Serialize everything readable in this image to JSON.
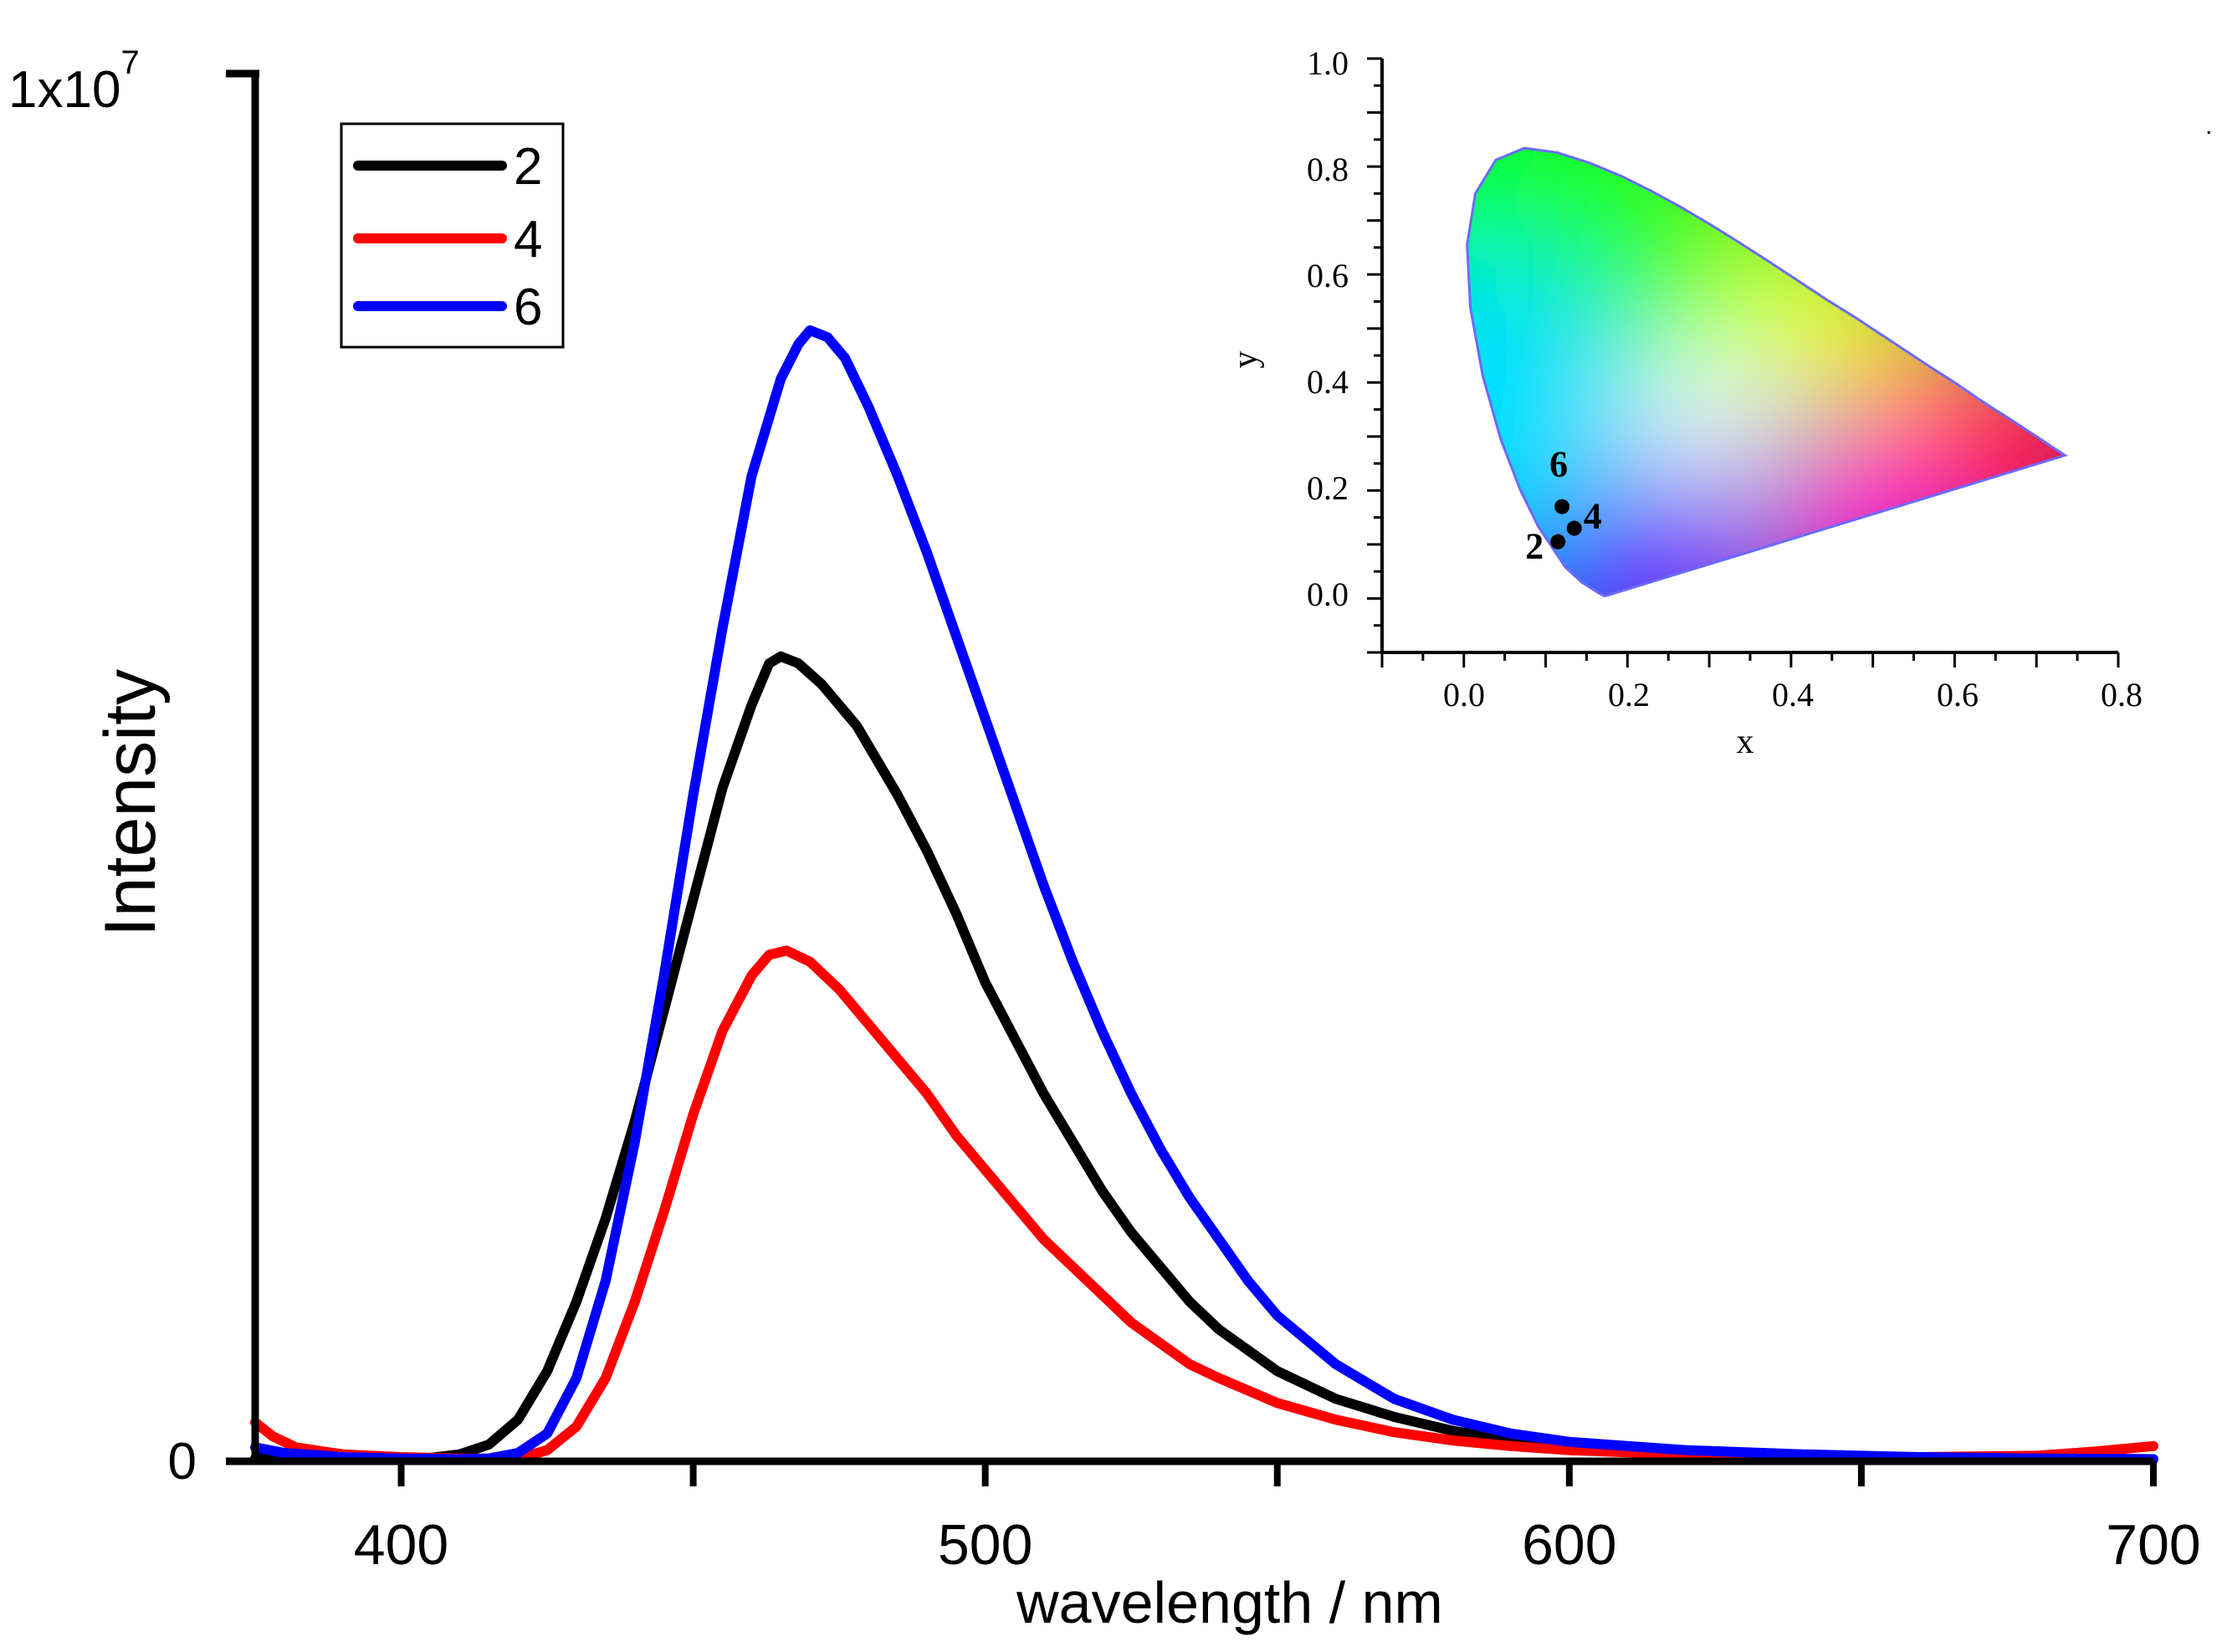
{
  "chart_data": [
    {
      "type": "line",
      "title": "",
      "xlabel": "wavelength / nm",
      "ylabel": "Intensity",
      "xlim": [
        375,
        700
      ],
      "ylim": [
        0,
        10000000
      ],
      "xticks": [
        400,
        500,
        600,
        700
      ],
      "xtick_labels": [
        "400",
        "500",
        "600",
        "700"
      ],
      "ytick_labels": [
        "0",
        "1x10",
        "7"
      ],
      "grid": false,
      "legend": "top-left",
      "series": [
        {
          "name": "2",
          "color": "#000000",
          "points": [
            [
              375,
              20000
            ],
            [
              380,
              50000
            ],
            [
              390,
              30000
            ],
            [
              400,
              20000
            ],
            [
              405,
              25000
            ],
            [
              410,
              50000
            ],
            [
              415,
              120000
            ],
            [
              420,
              300000
            ],
            [
              425,
              650000
            ],
            [
              430,
              1150000
            ],
            [
              435,
              1750000
            ],
            [
              440,
              2450000
            ],
            [
              445,
              3250000
            ],
            [
              450,
              4050000
            ],
            [
              455,
              4850000
            ],
            [
              460,
              5450000
            ],
            [
              463,
              5750000
            ],
            [
              465,
              5800000
            ],
            [
              468,
              5750000
            ],
            [
              472,
              5600000
            ],
            [
              478,
              5300000
            ],
            [
              485,
              4800000
            ],
            [
              490,
              4400000
            ],
            [
              495,
              3950000
            ],
            [
              500,
              3450000
            ],
            [
              505,
              3050000
            ],
            [
              510,
              2650000
            ],
            [
              515,
              2300000
            ],
            [
              520,
              1950000
            ],
            [
              525,
              1650000
            ],
            [
              530,
              1400000
            ],
            [
              535,
              1150000
            ],
            [
              540,
              950000
            ],
            [
              545,
              800000
            ],
            [
              550,
              650000
            ],
            [
              560,
              450000
            ],
            [
              570,
              320000
            ],
            [
              580,
              220000
            ],
            [
              590,
              150000
            ],
            [
              600,
              110000
            ],
            [
              620,
              60000
            ],
            [
              640,
              40000
            ],
            [
              660,
              25000
            ],
            [
              680,
              20000
            ],
            [
              700,
              15000
            ]
          ]
        },
        {
          "name": "4",
          "color": "#ff0000",
          "points": [
            [
              375,
              280000
            ],
            [
              378,
              180000
            ],
            [
              382,
              100000
            ],
            [
              390,
              50000
            ],
            [
              400,
              30000
            ],
            [
              410,
              20000
            ],
            [
              420,
              20000
            ],
            [
              425,
              80000
            ],
            [
              430,
              250000
            ],
            [
              435,
              600000
            ],
            [
              440,
              1150000
            ],
            [
              445,
              1800000
            ],
            [
              450,
              2500000
            ],
            [
              455,
              3100000
            ],
            [
              460,
              3500000
            ],
            [
              463,
              3650000
            ],
            [
              466,
              3680000
            ],
            [
              470,
              3600000
            ],
            [
              475,
              3400000
            ],
            [
              480,
              3150000
            ],
            [
              485,
              2900000
            ],
            [
              490,
              2650000
            ],
            [
              495,
              2350000
            ],
            [
              500,
              2100000
            ],
            [
              505,
              1850000
            ],
            [
              510,
              1600000
            ],
            [
              515,
              1400000
            ],
            [
              520,
              1200000
            ],
            [
              525,
              1000000
            ],
            [
              530,
              850000
            ],
            [
              535,
              700000
            ],
            [
              540,
              600000
            ],
            [
              550,
              420000
            ],
            [
              560,
              300000
            ],
            [
              570,
              210000
            ],
            [
              580,
              150000
            ],
            [
              590,
              110000
            ],
            [
              600,
              80000
            ],
            [
              620,
              50000
            ],
            [
              640,
              35000
            ],
            [
              660,
              30000
            ],
            [
              680,
              40000
            ],
            [
              690,
              70000
            ],
            [
              700,
              110000
            ]
          ]
        },
        {
          "name": "6",
          "color": "#0000ff",
          "points": [
            [
              375,
              100000
            ],
            [
              380,
              60000
            ],
            [
              390,
              30000
            ],
            [
              400,
              20000
            ],
            [
              410,
              15000
            ],
            [
              415,
              20000
            ],
            [
              420,
              60000
            ],
            [
              425,
              200000
            ],
            [
              430,
              600000
            ],
            [
              435,
              1300000
            ],
            [
              440,
              2300000
            ],
            [
              445,
              3500000
            ],
            [
              450,
              4800000
            ],
            [
              455,
              6000000
            ],
            [
              460,
              7100000
            ],
            [
              465,
              7800000
            ],
            [
              468,
              8050000
            ],
            [
              470,
              8150000
            ],
            [
              473,
              8100000
            ],
            [
              476,
              7950000
            ],
            [
              480,
              7600000
            ],
            [
              485,
              7100000
            ],
            [
              490,
              6550000
            ],
            [
              495,
              5950000
            ],
            [
              500,
              5350000
            ],
            [
              505,
              4750000
            ],
            [
              510,
              4150000
            ],
            [
              515,
              3600000
            ],
            [
              520,
              3100000
            ],
            [
              525,
              2650000
            ],
            [
              530,
              2250000
            ],
            [
              535,
              1900000
            ],
            [
              540,
              1600000
            ],
            [
              545,
              1300000
            ],
            [
              550,
              1050000
            ],
            [
              560,
              700000
            ],
            [
              570,
              450000
            ],
            [
              580,
              300000
            ],
            [
              590,
              200000
            ],
            [
              600,
              140000
            ],
            [
              620,
              80000
            ],
            [
              640,
              50000
            ],
            [
              660,
              30000
            ],
            [
              680,
              20000
            ],
            [
              700,
              15000
            ]
          ]
        }
      ]
    },
    {
      "type": "scatter",
      "title": "",
      "xlabel": "x",
      "ylabel": "y",
      "xlim": [
        -0.1,
        0.8
      ],
      "ylim": [
        -0.1,
        1.0
      ],
      "xticks": [
        0.0,
        0.2,
        0.4,
        0.6,
        0.8
      ],
      "xtick_labels": [
        "0.0",
        "0.2",
        "0.4",
        "0.6",
        "0.8"
      ],
      "yticks": [
        0.0,
        0.2,
        0.4,
        0.6,
        0.8,
        1.0
      ],
      "ytick_labels": [
        "0.0",
        "0.2",
        "0.4",
        "0.6",
        "0.8",
        "1.0"
      ],
      "grid": false,
      "background": "CIE 1931 chromaticity diagram",
      "points": [
        {
          "label": "2",
          "x": 0.115,
          "y": 0.105
        },
        {
          "label": "4",
          "x": 0.135,
          "y": 0.13
        },
        {
          "label": "6",
          "x": 0.12,
          "y": 0.17
        }
      ]
    }
  ]
}
